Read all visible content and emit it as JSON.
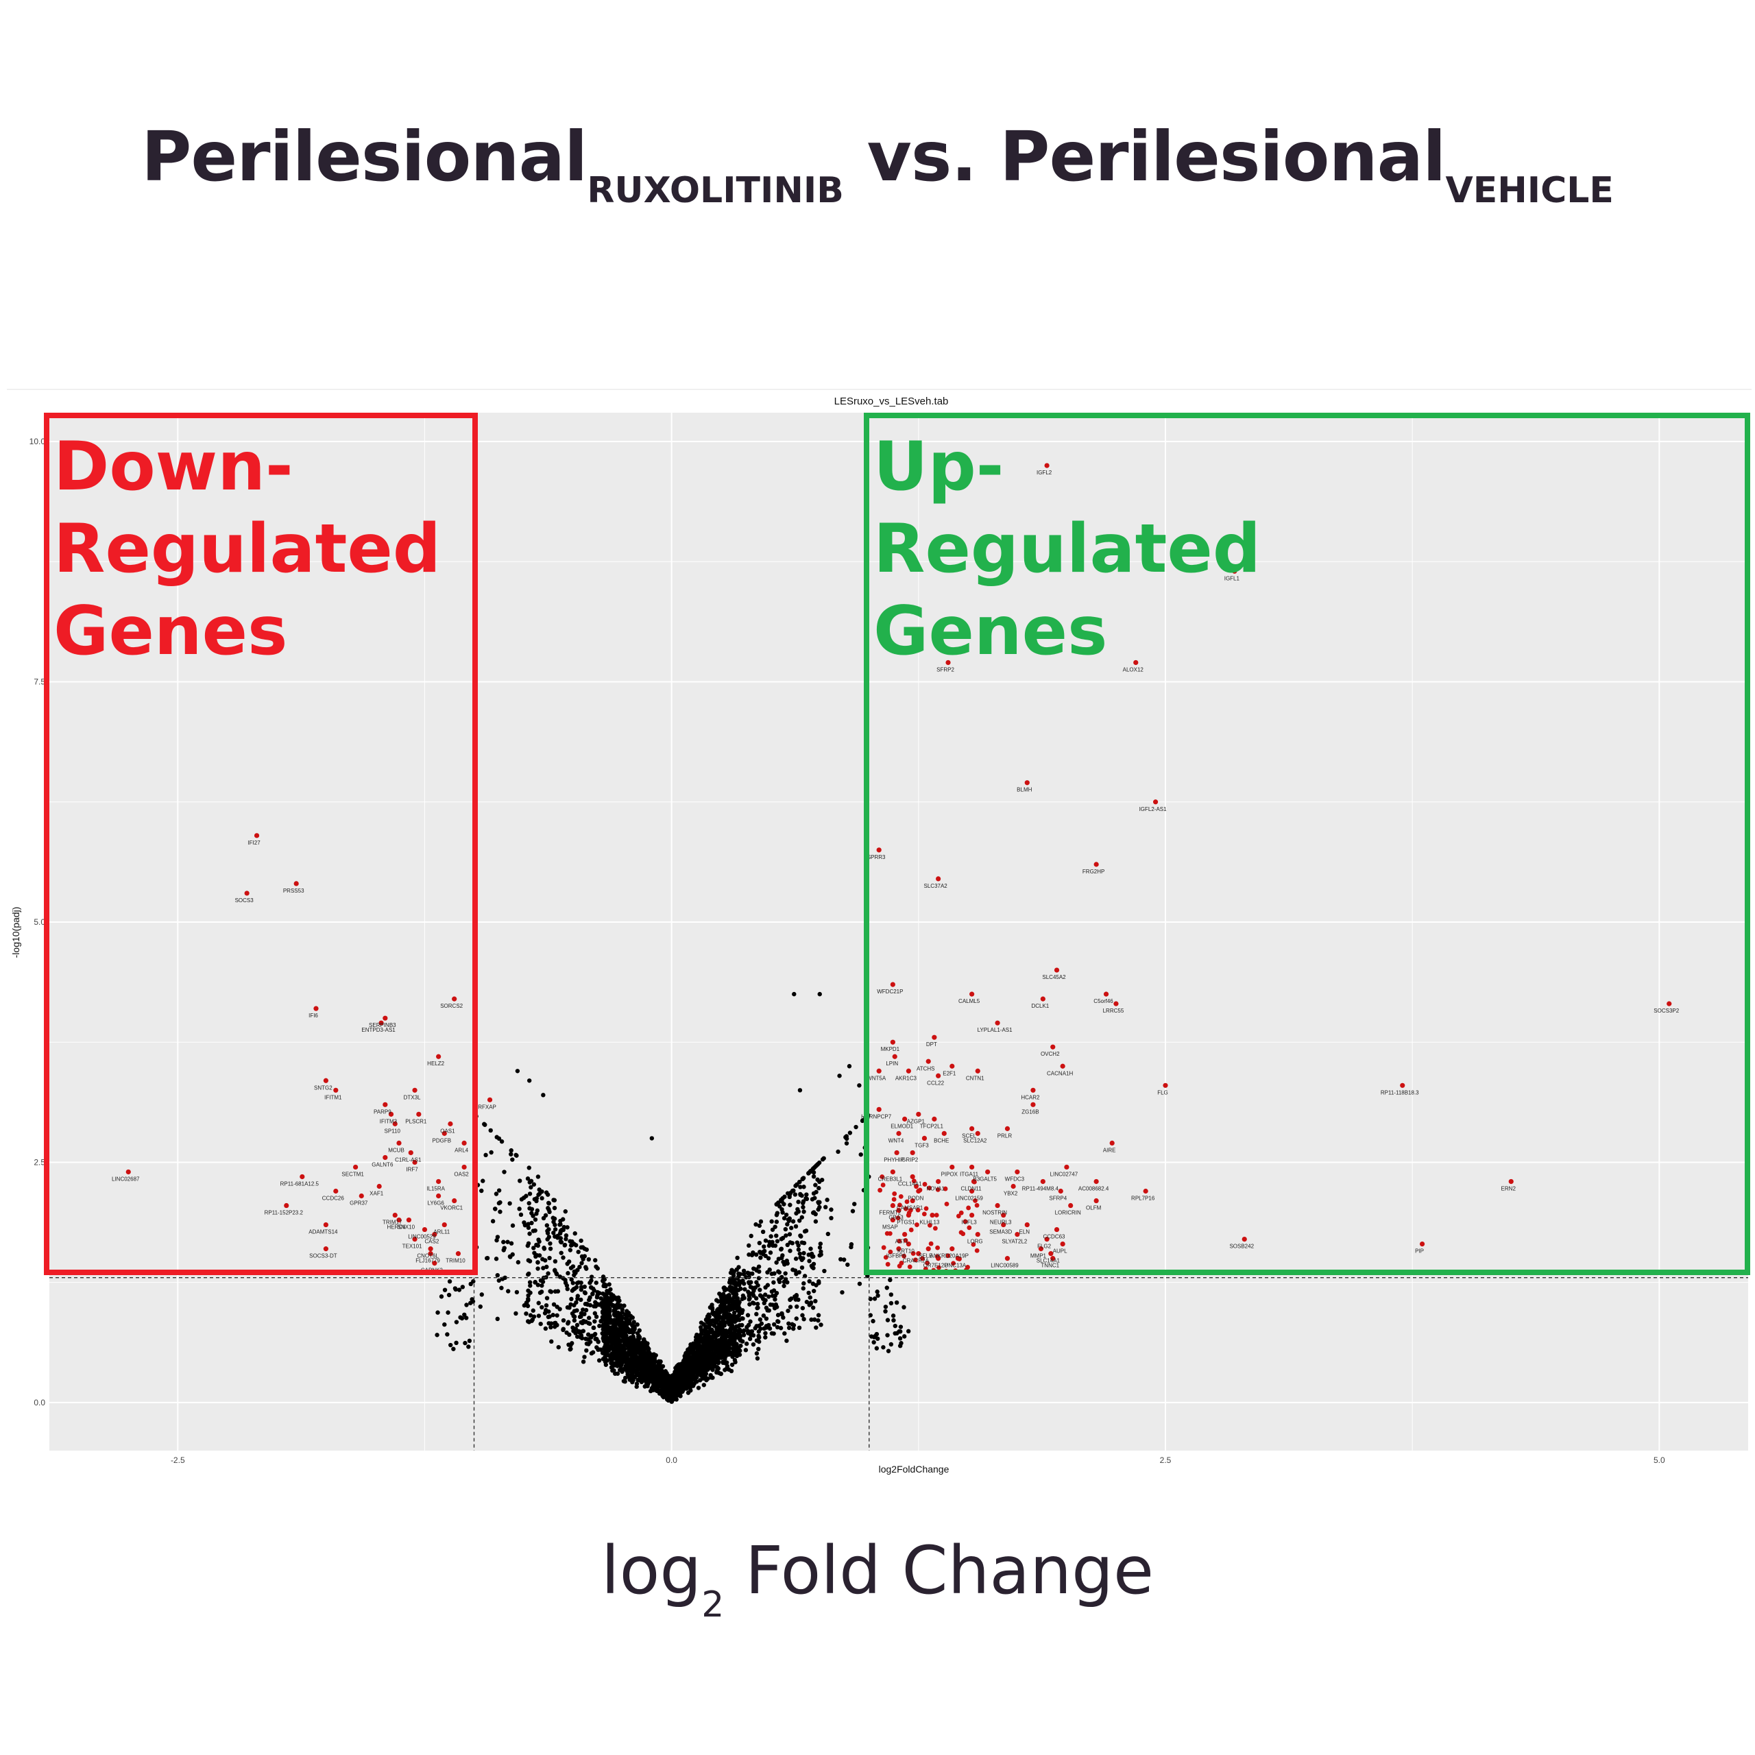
{
  "header": {
    "part1": "Perilesional",
    "sub1": "RUXOLITINIB",
    "part2": " vs. Perilesional",
    "sub2": "VEHICLE"
  },
  "footer": {
    "prefix": "log",
    "sub": "2",
    "suffix": " Fold Change"
  },
  "regions": {
    "down": {
      "line1": "Down-",
      "line2": "Regulated",
      "line3": "Genes",
      "color": "#ee1c25"
    },
    "up": {
      "line1": "Up-",
      "line2": "Regulated",
      "line3": "Genes",
      "color": "#22b14c"
    }
  },
  "chart_data": {
    "type": "scatter",
    "title": "LESruxo_vs_LESveh.tab",
    "xlabel": "log2FoldChange",
    "ylabel": "-log10(padj)",
    "xlim": [
      -3.15,
      5.45
    ],
    "ylim": [
      -0.5,
      10.3
    ],
    "xticks": [
      -2.5,
      0.0,
      2.5,
      5.0
    ],
    "yticks": [
      0.0,
      2.5,
      5.0,
      7.5,
      10.0
    ],
    "thresholds": {
      "log2fc": [
        -1.0,
        1.0
      ],
      "neglog10padj": 1.3
    },
    "grid": true,
    "colors": {
      "significant": "#cc1111",
      "other": "#000000",
      "panel": "#ebebeb"
    },
    "labeled_genes": [
      {
        "gene": "IGFL2",
        "x": 1.9,
        "y": 9.75
      },
      {
        "gene": "IGFL1",
        "x": 2.85,
        "y": 8.65
      },
      {
        "gene": "ALOX12",
        "x": 2.35,
        "y": 7.7
      },
      {
        "gene": "SFRP2",
        "x": 1.4,
        "y": 7.7
      },
      {
        "gene": "BLMH",
        "x": 1.8,
        "y": 6.45
      },
      {
        "gene": "IGFL2-AS1",
        "x": 2.45,
        "y": 6.25
      },
      {
        "gene": "IFI27",
        "x": -2.1,
        "y": 5.9
      },
      {
        "gene": "SPRR3",
        "x": 1.05,
        "y": 5.75
      },
      {
        "gene": "FRG2HP",
        "x": 2.15,
        "y": 5.6
      },
      {
        "gene": "PRSS53",
        "x": -1.9,
        "y": 5.4
      },
      {
        "gene": "SLC37A2",
        "x": 1.35,
        "y": 5.45
      },
      {
        "gene": "SOCS3",
        "x": -2.15,
        "y": 5.3
      },
      {
        "gene": "SLC45A2",
        "x": 1.95,
        "y": 4.5
      },
      {
        "gene": "WFDC21P",
        "x": 1.12,
        "y": 4.35
      },
      {
        "gene": "C5orf46",
        "x": 2.2,
        "y": 4.25
      },
      {
        "gene": "CALML5",
        "x": 1.52,
        "y": 4.25
      },
      {
        "gene": "LRRC55",
        "x": 2.25,
        "y": 4.15
      },
      {
        "gene": "DCLK1",
        "x": 1.88,
        "y": 4.2
      },
      {
        "gene": "SOCS3P2",
        "x": 5.05,
        "y": 4.15
      },
      {
        "gene": "IFI6",
        "x": -1.8,
        "y": 4.1
      },
      {
        "gene": "SERPINB3",
        "x": -1.45,
        "y": 4.0
      },
      {
        "gene": "ENTPD3-AS1",
        "x": -1.47,
        "y": 3.95
      },
      {
        "gene": "LYPLAL1-AS1",
        "x": 1.65,
        "y": 3.95
      },
      {
        "gene": "MKPD1",
        "x": 1.12,
        "y": 3.75
      },
      {
        "gene": "DPT",
        "x": 1.33,
        "y": 3.8
      },
      {
        "gene": "OVCH2",
        "x": 1.93,
        "y": 3.7
      },
      {
        "gene": "HELZ2",
        "x": -1.18,
        "y": 3.6
      },
      {
        "gene": "LPIN",
        "x": 1.13,
        "y": 3.6
      },
      {
        "gene": "ATCHS",
        "x": 1.3,
        "y": 3.55
      },
      {
        "gene": "CACNA1H",
        "x": 1.98,
        "y": 3.5
      },
      {
        "gene": "E2F1",
        "x": 1.42,
        "y": 3.5
      },
      {
        "gene": "WNT5A",
        "x": 1.05,
        "y": 3.45
      },
      {
        "gene": "AKR1C3",
        "x": 1.2,
        "y": 3.45
      },
      {
        "gene": "CCL22",
        "x": 1.35,
        "y": 3.4
      },
      {
        "gene": "CNTN1",
        "x": 1.55,
        "y": 3.45
      },
      {
        "gene": "FLG",
        "x": 2.5,
        "y": 3.3
      },
      {
        "gene": "RP11-118B18.3",
        "x": 3.7,
        "y": 3.3
      },
      {
        "gene": "SNTG2",
        "x": -1.75,
        "y": 3.35
      },
      {
        "gene": "IFITM1",
        "x": -1.7,
        "y": 3.25
      },
      {
        "gene": "DTX3L",
        "x": -1.3,
        "y": 3.25
      },
      {
        "gene": "HCAR2",
        "x": 1.83,
        "y": 3.25
      },
      {
        "gene": "PARP9",
        "x": -1.45,
        "y": 3.1
      },
      {
        "gene": "IFITM3",
        "x": -1.42,
        "y": 3.0
      },
      {
        "gene": "PLSCR1",
        "x": -1.28,
        "y": 3.0
      },
      {
        "gene": "AZGP1",
        "x": 1.25,
        "y": 3.0
      },
      {
        "gene": "HNRNPCP7",
        "x": 1.05,
        "y": 3.05
      },
      {
        "gene": "ZG16B",
        "x": 1.83,
        "y": 3.1
      },
      {
        "gene": "ELMOD1",
        "x": 1.18,
        "y": 2.95
      },
      {
        "gene": "TFCP2L1",
        "x": 1.33,
        "y": 2.95
      },
      {
        "gene": "SP110",
        "x": -1.4,
        "y": 2.9
      },
      {
        "gene": "PRLR",
        "x": 1.7,
        "y": 2.85
      },
      {
        "gene": "SCEL",
        "x": 1.52,
        "y": 2.85
      },
      {
        "gene": "OAS1",
        "x": -1.12,
        "y": 2.9
      },
      {
        "gene": "WNT4",
        "x": 1.15,
        "y": 2.8
      },
      {
        "gene": "BCHE",
        "x": 1.38,
        "y": 2.8
      },
      {
        "gene": "SLC12A2",
        "x": 1.55,
        "y": 2.8
      },
      {
        "gene": "TGF3",
        "x": 1.28,
        "y": 2.75
      },
      {
        "gene": "MCUB",
        "x": -1.38,
        "y": 2.7
      },
      {
        "gene": "XAF1",
        "x": -1.48,
        "y": 2.25
      },
      {
        "gene": "AIRE",
        "x": 2.23,
        "y": 2.7
      },
      {
        "gene": "C1RL-AS1",
        "x": -1.32,
        "y": 2.6
      },
      {
        "gene": "PHYHIP",
        "x": 1.14,
        "y": 2.6
      },
      {
        "gene": "GRIP2",
        "x": 1.22,
        "y": 2.6
      },
      {
        "gene": "GALNT6",
        "x": -1.45,
        "y": 2.55
      },
      {
        "gene": "IRF7",
        "x": -1.3,
        "y": 2.5
      },
      {
        "gene": "OAS2",
        "x": -1.05,
        "y": 2.45
      },
      {
        "gene": "SECTM1",
        "x": -1.6,
        "y": 2.45
      },
      {
        "gene": "LINC02747",
        "x": 2.0,
        "y": 2.45
      },
      {
        "gene": "ITGA11",
        "x": 1.52,
        "y": 2.45
      },
      {
        "gene": "LINC02687",
        "x": -2.75,
        "y": 2.4
      },
      {
        "gene": "RP11-681A12.5",
        "x": -1.87,
        "y": 2.35
      },
      {
        "gene": "CREB3L1",
        "x": 1.12,
        "y": 2.4
      },
      {
        "gene": "CCL14A1",
        "x": 1.22,
        "y": 2.35
      },
      {
        "gene": "PIPOX",
        "x": 1.42,
        "y": 2.45
      },
      {
        "gene": "B3GALT5",
        "x": 1.6,
        "y": 2.4
      },
      {
        "gene": "WFDC3",
        "x": 1.75,
        "y": 2.4
      },
      {
        "gene": "RP11-494M8.4",
        "x": 1.88,
        "y": 2.3
      },
      {
        "gene": "AC008682.4",
        "x": 2.15,
        "y": 2.3
      },
      {
        "gene": "CLDN11",
        "x": 1.53,
        "y": 2.3
      },
      {
        "gene": "YBX2",
        "x": 1.73,
        "y": 2.25
      },
      {
        "gene": "NOVA1",
        "x": 1.35,
        "y": 2.3
      },
      {
        "gene": "RPL7P16",
        "x": 2.4,
        "y": 2.2
      },
      {
        "gene": "ERN2",
        "x": 4.25,
        "y": 2.3
      },
      {
        "gene": "SFRP4",
        "x": 1.97,
        "y": 2.2
      },
      {
        "gene": "LINC02159",
        "x": 1.52,
        "y": 2.2
      },
      {
        "gene": "CCDC26",
        "x": -1.7,
        "y": 2.2
      },
      {
        "gene": "GPR37",
        "x": -1.57,
        "y": 2.15
      },
      {
        "gene": "OLFM",
        "x": 2.15,
        "y": 2.1
      },
      {
        "gene": "LORICRIN",
        "x": 2.02,
        "y": 2.05
      },
      {
        "gene": "RP11-152P23.2",
        "x": -1.95,
        "y": 2.05
      },
      {
        "gene": "TRIM17",
        "x": -1.4,
        "y": 1.95
      },
      {
        "gene": "NOSTRIN",
        "x": 1.65,
        "y": 2.05
      },
      {
        "gene": "NEURL3",
        "x": 1.68,
        "y": 1.95
      },
      {
        "gene": "KLHL13",
        "x": 1.32,
        "y": 1.95
      },
      {
        "gene": "IGFL3",
        "x": 1.52,
        "y": 1.95
      },
      {
        "gene": "HERC6",
        "x": -1.38,
        "y": 1.9
      },
      {
        "gene": "SNX10",
        "x": -1.33,
        "y": 1.9
      },
      {
        "gene": "ADAMTS14",
        "x": -1.75,
        "y": 1.85
      },
      {
        "gene": "ARL11",
        "x": -1.15,
        "y": 1.85
      },
      {
        "gene": "SEMA3D",
        "x": 1.68,
        "y": 1.85
      },
      {
        "gene": "ELN",
        "x": 1.8,
        "y": 1.85
      },
      {
        "gene": "CCDC63",
        "x": 1.95,
        "y": 1.8
      },
      {
        "gene": "SLYAT2L2",
        "x": 1.75,
        "y": 1.75
      },
      {
        "gene": "FLG2",
        "x": 1.9,
        "y": 1.7
      },
      {
        "gene": "AUPL",
        "x": 1.98,
        "y": 1.65
      },
      {
        "gene": "SOSB242",
        "x": 2.9,
        "y": 1.7
      },
      {
        "gene": "PIP",
        "x": 3.8,
        "y": 1.65
      },
      {
        "gene": "SOCS3-DT",
        "x": -1.75,
        "y": 1.6
      },
      {
        "gene": "TEX101",
        "x": -1.3,
        "y": 1.7
      },
      {
        "gene": "CNOT6L",
        "x": -1.22,
        "y": 1.6
      },
      {
        "gene": "LINC00529",
        "x": -1.25,
        "y": 1.8
      },
      {
        "gene": "CAS2",
        "x": -1.2,
        "y": 1.75
      },
      {
        "gene": "MMP1",
        "x": 1.87,
        "y": 1.6
      },
      {
        "gene": "SLC14A1",
        "x": 1.92,
        "y": 1.55
      },
      {
        "gene": "TNNC1",
        "x": 1.93,
        "y": 1.5
      },
      {
        "gene": "UNC13A",
        "x": 1.45,
        "y": 1.5
      },
      {
        "gene": "SELE",
        "x": 1.3,
        "y": 1.6
      },
      {
        "gene": "ANKRD20A19P",
        "x": 1.42,
        "y": 1.6
      },
      {
        "gene": "OR7E12P",
        "x": 1.35,
        "y": 1.5
      },
      {
        "gene": "LINC00589",
        "x": 1.7,
        "y": 1.5
      },
      {
        "gene": "CAPNK2",
        "x": -1.2,
        "y": 1.45
      },
      {
        "gene": "RFXAP",
        "x": -0.92,
        "y": 3.15
      },
      {
        "gene": "SORCS2",
        "x": -1.1,
        "y": 4.2
      },
      {
        "gene": "PDGFB",
        "x": -1.15,
        "y": 2.8
      },
      {
        "gene": "ARL4",
        "x": -1.05,
        "y": 2.7
      },
      {
        "gene": "IL15RA",
        "x": -1.18,
        "y": 2.3
      },
      {
        "gene": "LY6G6",
        "x": -1.18,
        "y": 2.15
      },
      {
        "gene": "VKORC1",
        "x": -1.1,
        "y": 2.1
      },
      {
        "gene": "FLJ16779",
        "x": -1.22,
        "y": 1.55
      },
      {
        "gene": "TRIM10",
        "x": -1.08,
        "y": 1.55
      },
      {
        "gene": "FERMT2",
        "x": 1.12,
        "y": 2.05
      },
      {
        "gene": "PODN",
        "x": 1.25,
        "y": 2.2
      },
      {
        "gene": "CAMSAP1",
        "x": 1.22,
        "y": 2.1
      },
      {
        "gene": "KRT10",
        "x": 1.2,
        "y": 1.65
      },
      {
        "gene": "IGFBP6",
        "x": 1.15,
        "y": 1.6
      },
      {
        "gene": "CRACR2A",
        "x": 1.25,
        "y": 1.55
      },
      {
        "gene": "ASTL",
        "x": 1.18,
        "y": 1.75
      },
      {
        "gene": "MSAP",
        "x": 1.12,
        "y": 1.9
      },
      {
        "gene": "PTGS1",
        "x": 1.2,
        "y": 1.95
      },
      {
        "gene": "GBA3",
        "x": 1.15,
        "y": 2.0
      },
      {
        "gene": "LORG",
        "x": 1.55,
        "y": 1.75
      }
    ],
    "sig_unlabeled_count": 70,
    "nonsig_points_count": 3300
  }
}
